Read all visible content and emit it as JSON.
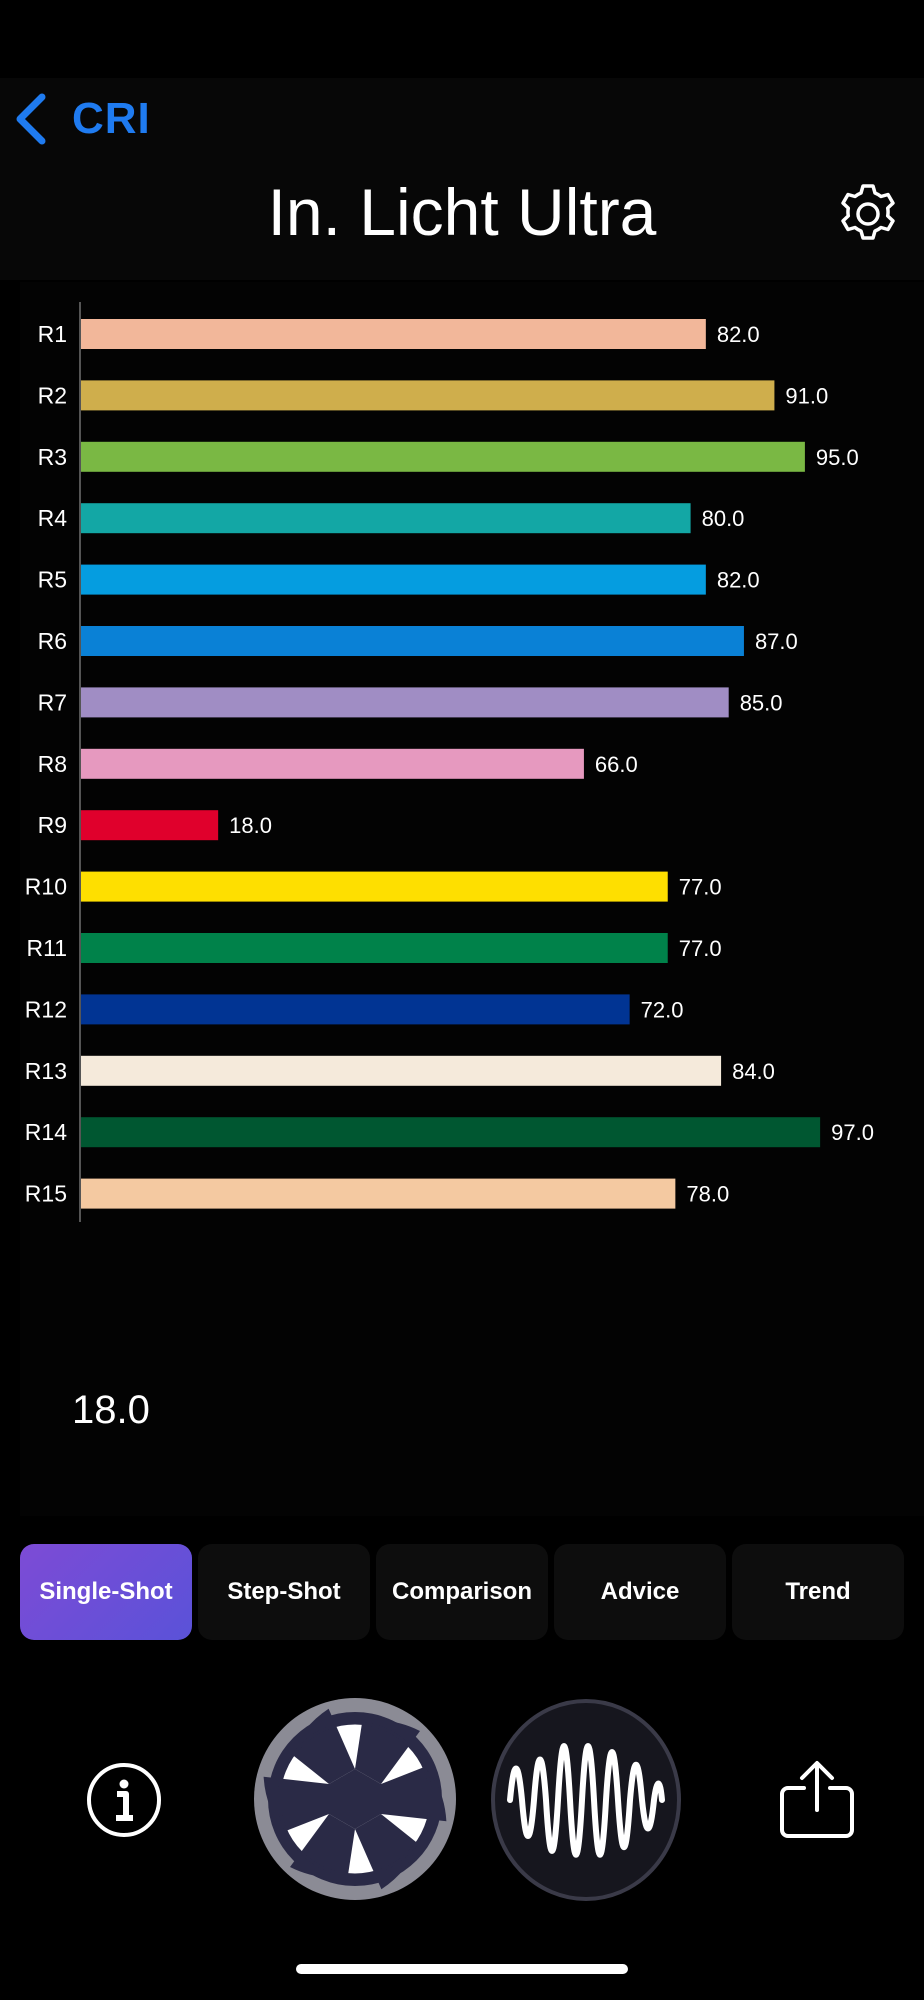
{
  "nav": {
    "back_label": "CRI"
  },
  "header": {
    "title": "In. Licht Ultra"
  },
  "chart_data": {
    "type": "bar",
    "orientation": "horizontal",
    "categories": [
      "R1",
      "R2",
      "R3",
      "R4",
      "R5",
      "R6",
      "R7",
      "R8",
      "R9",
      "R10",
      "R11",
      "R12",
      "R13",
      "R14",
      "R15"
    ],
    "values": [
      82.0,
      91.0,
      95.0,
      80.0,
      82.0,
      87.0,
      85.0,
      66.0,
      18.0,
      77.0,
      77.0,
      72.0,
      84.0,
      97.0,
      78.0
    ],
    "value_labels": [
      "82.0",
      "91.0",
      "95.0",
      "80.0",
      "82.0",
      "87.0",
      "85.0",
      "66.0",
      "18.0",
      "77.0",
      "77.0",
      "72.0",
      "84.0",
      "97.0",
      "78.0"
    ],
    "colors": [
      "#f2b79a",
      "#cfae4c",
      "#7ab844",
      "#13a7a5",
      "#059de0",
      "#0a81d6",
      "#a08dc4",
      "#e699bf",
      "#e0002c",
      "#fedf00",
      "#00824a",
      "#013493",
      "#f5eadb",
      "#005731",
      "#f4c9a1"
    ],
    "xlim": [
      0,
      100
    ]
  },
  "selected_value": "18.0",
  "tabs": [
    {
      "label": "Single-Shot",
      "active": true
    },
    {
      "label": "Step-Shot",
      "active": false
    },
    {
      "label": "Comparison",
      "active": false
    },
    {
      "label": "Advice",
      "active": false
    },
    {
      "label": "Trend",
      "active": false
    }
  ],
  "toolbar": {
    "info_icon": "info-icon",
    "shutter_icon": "camera-shutter-icon",
    "waveform_icon": "waveform-icon",
    "share_icon": "share-icon"
  },
  "colors": {
    "accent": "#1f7bf0",
    "tab_active_start": "#7d4bd6",
    "tab_active_end": "#5a52d8"
  }
}
